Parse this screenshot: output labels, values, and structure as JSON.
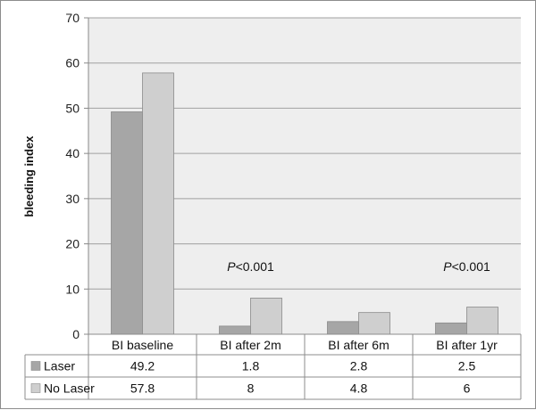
{
  "chart_data": {
    "type": "bar",
    "categories": [
      "BI baseline",
      "BI after 2m",
      "BI after 6m",
      "BI after 1yr"
    ],
    "series": [
      {
        "name": "Laser",
        "values": [
          49.2,
          1.8,
          2.8,
          2.5
        ],
        "value_labels": [
          "49.2",
          "1.8",
          "2.8",
          "2.5"
        ],
        "color": "#a6a6a6"
      },
      {
        "name": "No Laser",
        "values": [
          57.8,
          8,
          4.8,
          6
        ],
        "value_labels": [
          "57.8",
          "8",
          "4.8",
          "6"
        ],
        "color": "#cfcfcf"
      }
    ],
    "ylabel": "bleeding index",
    "ylim": [
      0,
      70
    ],
    "yticks": [
      "0",
      "10",
      "20",
      "30",
      "40",
      "50",
      "60",
      "70"
    ],
    "grid": true,
    "plot_background": "#eeeeee",
    "legend": "data table below the plot",
    "annotations": [
      {
        "category": "BI after 2m",
        "label_italic": "P",
        "label_rest": "<0.001",
        "y": 15
      },
      {
        "category": "BI after 1yr",
        "label_italic": "P",
        "label_rest": "<0.001",
        "y": 15
      }
    ]
  }
}
